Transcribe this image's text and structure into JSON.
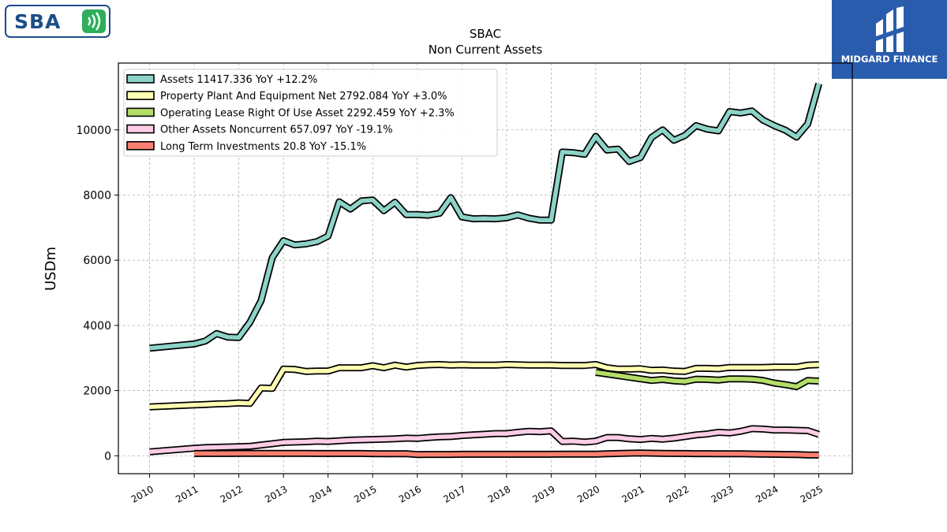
{
  "brand_left": {
    "text": "SBA",
    "accent": "#2fae5b",
    "color": "#1d4e89"
  },
  "brand_right": {
    "name": "MIDGARD FINANCE",
    "color": "#2a5cad"
  },
  "chart_data": {
    "type": "line",
    "title": "SBAC",
    "subtitle": "Non Current  Assets",
    "ylabel": "USDm",
    "xlabel": "",
    "ylim": [
      -550,
      12050
    ],
    "xlim": [
      2009.3,
      2025.75
    ],
    "yticks": [
      0,
      2000,
      4000,
      6000,
      8000,
      10000
    ],
    "xticks": [
      "2010",
      "2011",
      "2012",
      "2013",
      "2014",
      "2015",
      "2016",
      "2017",
      "2018",
      "2019",
      "2020",
      "2021",
      "2022",
      "2023",
      "2024",
      "2025"
    ],
    "grid": true,
    "legend_position": "top-left",
    "series": [
      {
        "name": "Assets",
        "legend": "Assets  11417.336 YoY +12.2%",
        "color": "#8dd3c7",
        "x": [
          2010.0,
          2011.0,
          2011.25,
          2011.5,
          2011.75,
          2012.0,
          2012.25,
          2012.5,
          2012.75,
          2013.0,
          2013.25,
          2013.5,
          2013.75,
          2014.0,
          2014.25,
          2014.5,
          2014.75,
          2015.0,
          2015.25,
          2015.5,
          2015.75,
          2016.0,
          2016.25,
          2016.5,
          2016.75,
          2017.0,
          2017.25,
          2017.5,
          2017.75,
          2018.0,
          2018.25,
          2018.5,
          2018.75,
          2019.0,
          2019.25,
          2019.5,
          2019.75,
          2020.0,
          2020.25,
          2020.5,
          2020.75,
          2021.0,
          2021.25,
          2021.5,
          2021.75,
          2022.0,
          2022.25,
          2022.5,
          2022.75,
          2023.0,
          2023.25,
          2023.5,
          2023.75,
          2024.0,
          2024.25,
          2024.5,
          2024.75,
          2025.0
        ],
        "values": [
          3300,
          3430,
          3520,
          3750,
          3640,
          3630,
          4100,
          4760,
          6080,
          6600,
          6470,
          6500,
          6570,
          6740,
          7790,
          7570,
          7820,
          7850,
          7520,
          7780,
          7400,
          7400,
          7380,
          7440,
          7920,
          7330,
          7270,
          7280,
          7270,
          7300,
          7390,
          7290,
          7230,
          7230,
          9320,
          9300,
          9250,
          9800,
          9380,
          9410,
          9030,
          9150,
          9770,
          10000,
          9680,
          9830,
          10130,
          10020,
          9970,
          10560,
          10520,
          10580,
          10300,
          10130,
          9990,
          9780,
          10180,
          11417.336
        ]
      },
      {
        "name": "Property Plant And Equipment Net",
        "legend": "Property Plant And Equipment Net  2792.084 YoY +3.0%",
        "color": "#ffffb3",
        "x": [
          2010.0,
          2011.0,
          2011.25,
          2011.5,
          2011.75,
          2012.0,
          2012.25,
          2012.5,
          2012.75,
          2013.0,
          2013.25,
          2013.5,
          2013.75,
          2014.0,
          2014.25,
          2014.5,
          2014.75,
          2015.0,
          2015.25,
          2015.5,
          2015.75,
          2016.0,
          2016.25,
          2016.5,
          2016.75,
          2017.0,
          2017.25,
          2017.5,
          2017.75,
          2018.0,
          2018.25,
          2018.5,
          2018.75,
          2019.0,
          2019.25,
          2019.5,
          2019.75,
          2020.0,
          2020.25,
          2020.5,
          2020.75,
          2021.0,
          2021.25,
          2021.5,
          2021.75,
          2022.0,
          2022.25,
          2022.5,
          2022.75,
          2023.0,
          2023.25,
          2023.5,
          2023.75,
          2024.0,
          2024.25,
          2024.5,
          2024.75,
          2025.0
        ],
        "values": [
          1500,
          1560,
          1570,
          1590,
          1600,
          1620,
          1610,
          2080,
          2070,
          2660,
          2650,
          2590,
          2600,
          2600,
          2700,
          2700,
          2700,
          2760,
          2700,
          2780,
          2720,
          2770,
          2790,
          2800,
          2780,
          2790,
          2780,
          2780,
          2780,
          2800,
          2790,
          2780,
          2780,
          2780,
          2770,
          2770,
          2770,
          2800,
          2700,
          2660,
          2660,
          2670,
          2620,
          2630,
          2600,
          2590,
          2680,
          2680,
          2670,
          2710,
          2710,
          2710,
          2710,
          2720,
          2720,
          2720,
          2780,
          2792.084
        ]
      },
      {
        "name": "Operating Lease Right Of Use Asset",
        "legend": "Operating Lease Right Of Use Asset  2292.459 YoY +2.3%",
        "color": "#b3de69",
        "x": [
          2020.0,
          2020.25,
          2020.5,
          2020.75,
          2021.0,
          2021.25,
          2021.5,
          2021.75,
          2022.0,
          2022.25,
          2022.5,
          2022.75,
          2023.0,
          2023.25,
          2023.5,
          2023.75,
          2024.0,
          2024.25,
          2024.5,
          2024.75,
          2025.0
        ],
        "values": [
          2560,
          2510,
          2460,
          2410,
          2360,
          2310,
          2340,
          2300,
          2280,
          2350,
          2340,
          2320,
          2360,
          2360,
          2350,
          2310,
          2230,
          2180,
          2120,
          2310,
          2292.459
        ]
      },
      {
        "name": "Other Assets Noncurrent",
        "legend": "Other Assets Noncurrent  657.097 YoY -19.1%",
        "color": "#fccde5",
        "x": [
          2010.0,
          2011.0,
          2011.25,
          2011.5,
          2011.75,
          2012.0,
          2012.25,
          2012.5,
          2012.75,
          2013.0,
          2013.25,
          2013.5,
          2013.75,
          2014.0,
          2014.25,
          2014.5,
          2014.75,
          2015.0,
          2015.25,
          2015.5,
          2015.75,
          2016.0,
          2016.25,
          2016.5,
          2016.75,
          2017.0,
          2017.25,
          2017.5,
          2017.75,
          2018.0,
          2018.25,
          2018.5,
          2018.75,
          2019.0,
          2019.25,
          2019.5,
          2019.75,
          2020.0,
          2020.25,
          2020.5,
          2020.75,
          2021.0,
          2021.25,
          2021.5,
          2021.75,
          2022.0,
          2022.25,
          2022.5,
          2022.75,
          2023.0,
          2023.25,
          2023.5,
          2023.75,
          2024.0,
          2024.25,
          2024.5,
          2024.75,
          2025.0
        ],
        "values": [
          120,
          230,
          250,
          260,
          270,
          280,
          290,
          330,
          370,
          410,
          420,
          430,
          450,
          440,
          460,
          480,
          490,
          500,
          510,
          520,
          540,
          530,
          560,
          580,
          590,
          620,
          640,
          660,
          680,
          680,
          720,
          750,
          740,
          760,
          440,
          450,
          420,
          450,
          560,
          560,
          520,
          500,
          530,
          510,
          540,
          590,
          640,
          670,
          720,
          700,
          750,
          830,
          820,
          790,
          790,
          780,
          770,
          657.097
        ]
      },
      {
        "name": "Long Term Investments",
        "legend": "Long Term Investments  20.8 YoY -15.1%",
        "color": "#fb8072",
        "x": [
          2011.0,
          2011.25,
          2011.5,
          2011.75,
          2012.0,
          2012.25,
          2012.5,
          2012.75,
          2013.0,
          2013.25,
          2013.5,
          2013.75,
          2014.0,
          2014.25,
          2014.5,
          2014.75,
          2015.0,
          2015.25,
          2015.5,
          2015.75,
          2016.0,
          2016.25,
          2016.5,
          2016.75,
          2017.0,
          2017.25,
          2017.5,
          2017.75,
          2018.0,
          2018.25,
          2018.5,
          2018.75,
          2019.0,
          2019.25,
          2019.5,
          2019.75,
          2020.0,
          2020.25,
          2020.5,
          2020.75,
          2021.0,
          2021.25,
          2021.5,
          2021.75,
          2022.0,
          2022.25,
          2022.5,
          2022.75,
          2023.0,
          2023.25,
          2023.5,
          2023.75,
          2024.0,
          2024.25,
          2024.5,
          2024.75,
          2025.0
        ],
        "values": [
          70,
          70,
          70,
          70,
          75,
          75,
          75,
          75,
          75,
          75,
          75,
          70,
          70,
          70,
          70,
          70,
          65,
          60,
          60,
          65,
          35,
          40,
          40,
          40,
          45,
          45,
          45,
          45,
          45,
          45,
          45,
          45,
          45,
          50,
          50,
          50,
          50,
          60,
          70,
          80,
          85,
          80,
          75,
          70,
          70,
          65,
          65,
          60,
          60,
          60,
          55,
          50,
          45,
          40,
          35,
          25,
          20.8
        ]
      }
    ]
  }
}
